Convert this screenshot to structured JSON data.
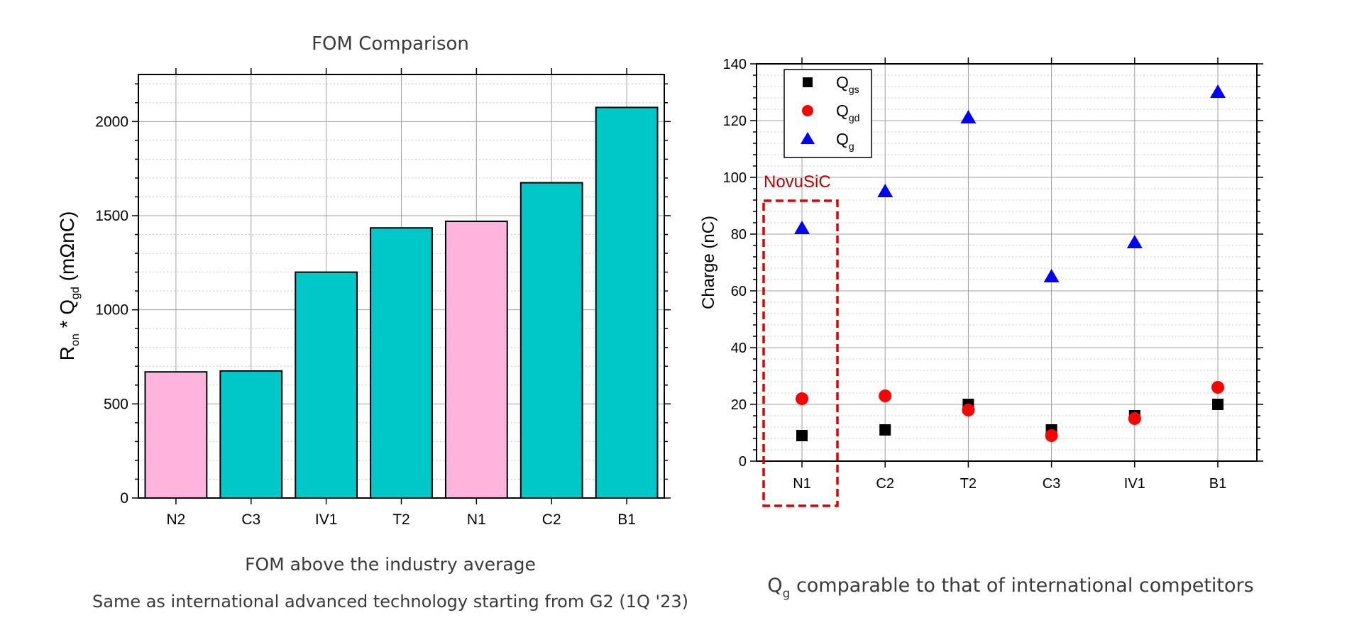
{
  "colors": {
    "novusic_bar": "#ffb3dd",
    "competitor_bar": "#00c8c8",
    "bar_stroke": "#000000",
    "qgs_marker": "#000000",
    "qgd_marker": "#ff0000",
    "qg_marker": "#0000ff",
    "highlight_box": "#e00000",
    "caption_text": "#3a3a3a"
  },
  "left": {
    "title": "FOM Comparison",
    "caption_line1": "FOM above the industry average",
    "caption_line2": "Same as international advanced technology starting from G2 (1Q '23)"
  },
  "right": {
    "caption_main": "Q",
    "caption_sub": "g",
    "caption_rest": " comparable to that of international competitors",
    "highlight_label": "NovuSiC",
    "highlight_category": "N1"
  },
  "chart_data": [
    {
      "type": "bar",
      "title": "FOM Comparison",
      "xlabel": "",
      "ylabel": "Ron * Qgd (mΩnC)",
      "ylabel_parts": {
        "R": "R",
        "R_sub": "on",
        "mid": " * Q",
        "Q_sub": "gd",
        "unit": " (mΩnC)"
      },
      "categories": [
        "N2",
        "C3",
        "IV1",
        "T2",
        "N1",
        "C2",
        "B1"
      ],
      "values": [
        670,
        675,
        1200,
        1435,
        1470,
        1675,
        2075
      ],
      "highlight": [
        true,
        false,
        false,
        false,
        true,
        false,
        false
      ],
      "ylim": [
        0,
        2250
      ],
      "yticks": [
        0,
        500,
        1000,
        1500,
        2000
      ],
      "grid": true
    },
    {
      "type": "scatter",
      "title": "",
      "xlabel": "",
      "ylabel": "Charge (nC)",
      "categories": [
        "N1",
        "C2",
        "T2",
        "C3",
        "IV1",
        "B1"
      ],
      "series": [
        {
          "name": "Q",
          "sub": "gs",
          "marker": "square",
          "values": [
            9,
            11,
            20,
            11,
            16,
            20
          ]
        },
        {
          "name": "Q",
          "sub": "gd",
          "marker": "circle",
          "values": [
            22,
            23,
            18,
            9,
            15,
            26
          ]
        },
        {
          "name": "Q",
          "sub": "g",
          "marker": "triangle",
          "values": [
            82,
            95,
            121,
            65,
            77,
            130
          ]
        }
      ],
      "ylim": [
        0,
        140
      ],
      "yticks": [
        0,
        20,
        40,
        60,
        80,
        100,
        120,
        140
      ],
      "legend": "top-left",
      "grid": true
    }
  ]
}
